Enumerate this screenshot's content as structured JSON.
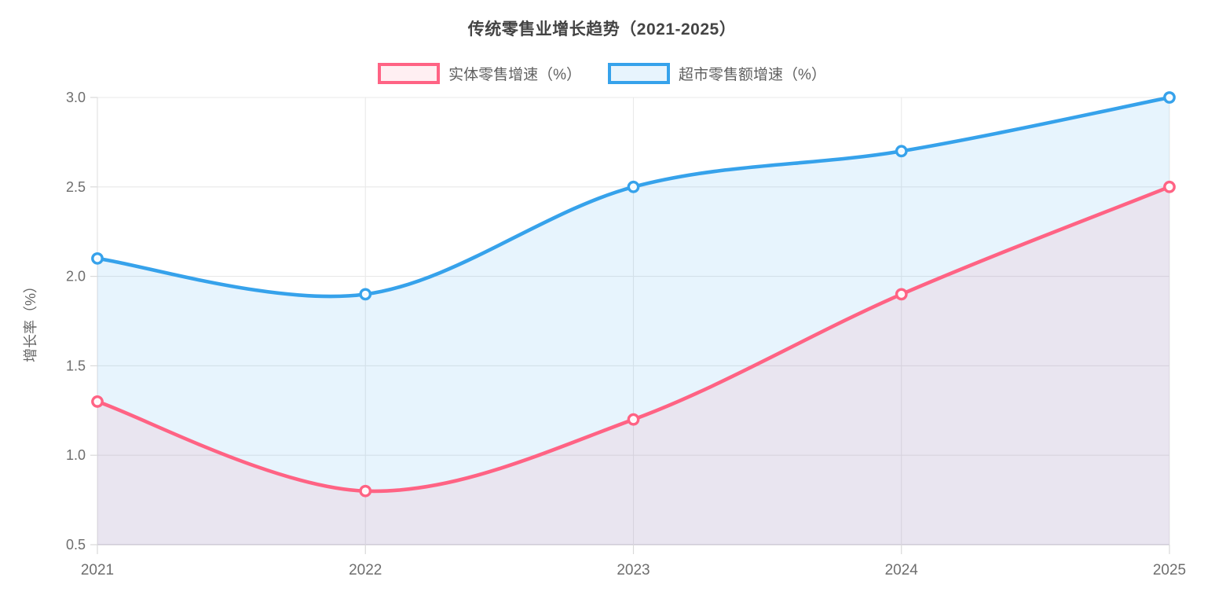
{
  "chart": {
    "title": "传统零售业增长趋势（2021-2025）",
    "y_axis_title": "增长率（%）"
  },
  "chart_data": {
    "type": "line",
    "title": "传统零售业增长趋势（2021-2025）",
    "xlabel": "",
    "ylabel": "增长率（%）",
    "categories": [
      "2021",
      "2022",
      "2023",
      "2024",
      "2025"
    ],
    "series": [
      {
        "name": "实体零售增速（%）",
        "values": [
          1.3,
          0.8,
          1.2,
          1.9,
          2.5
        ],
        "color": "#ff6384",
        "fill_opacity": 0.1
      },
      {
        "name": "超市零售额增速（%）",
        "values": [
          2.1,
          1.9,
          2.5,
          2.7,
          3.0
        ],
        "color": "#36a2eb",
        "fill_opacity": 0.12
      }
    ],
    "ylim": [
      0.5,
      3.0
    ],
    "y_tick_step": 0.5,
    "y_tick_labels": [
      "0.5",
      "1.0",
      "1.5",
      "2.0",
      "2.5",
      "3.0"
    ],
    "grid": true,
    "smooth": true,
    "area_fill": true,
    "legend_position": "top",
    "colors": {
      "grid_line": "#e9e9e9",
      "axis_border": "#d7d5db",
      "tick_label": "#6e6e6e",
      "point_fill": "#ffffff"
    }
  }
}
